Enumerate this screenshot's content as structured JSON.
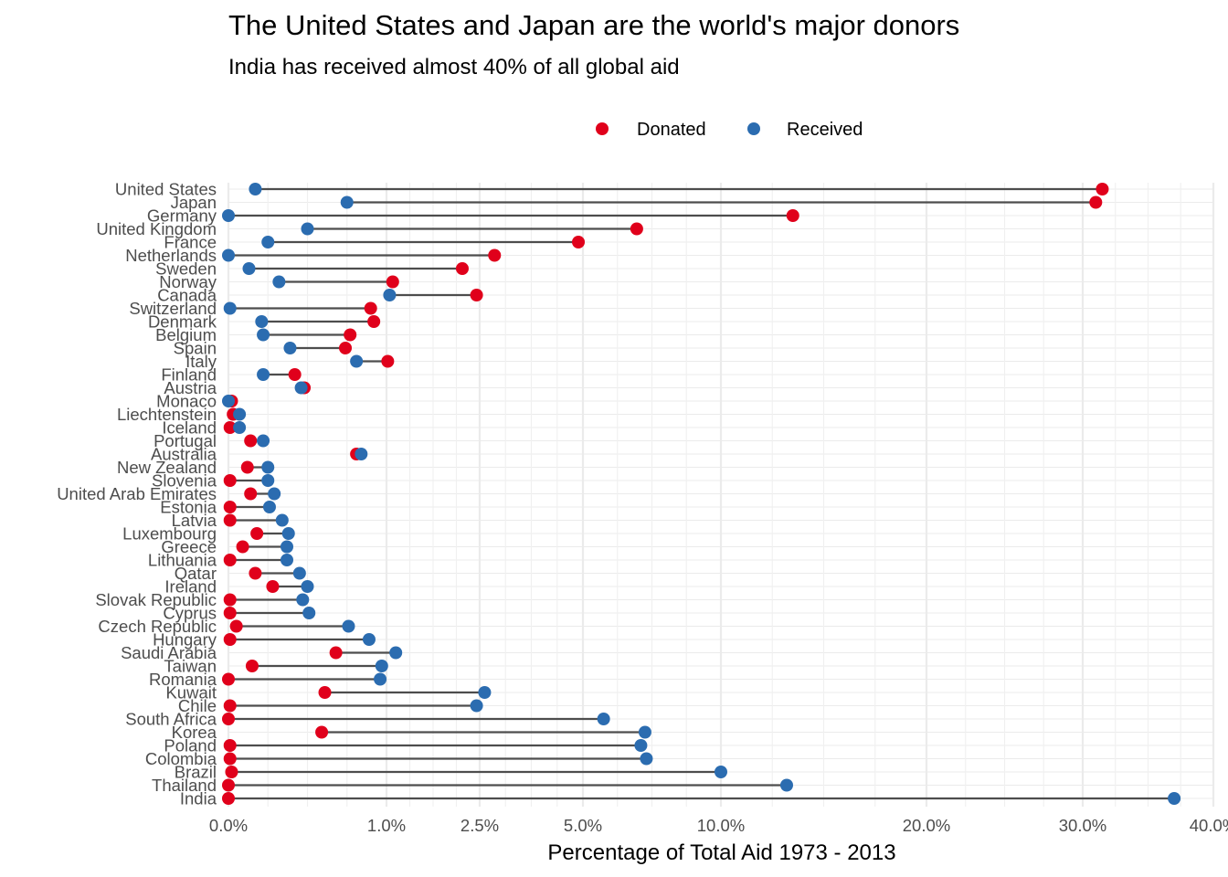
{
  "chart_data": {
    "type": "dumbbell",
    "title": "The United States and Japan are the world's major donors",
    "subtitle": "India has received almost 40% of all global aid",
    "xlabel": "Percentage of Total Aid 1973 - 2013",
    "ylabel": "",
    "x_scale": "piecewise-linear",
    "xlim": [
      0,
      40
    ],
    "x_ticks": [
      {
        "value": 0,
        "label": "0.0%"
      },
      {
        "value": 1,
        "label": "1.0%"
      },
      {
        "value": 2.5,
        "label": "2.5%"
      },
      {
        "value": 5,
        "label": "5.0%"
      },
      {
        "value": 10,
        "label": "10.0%"
      },
      {
        "value": 20,
        "label": "20.0%"
      },
      {
        "value": 30,
        "label": "30.0%"
      },
      {
        "value": 40,
        "label": "40.0%"
      }
    ],
    "grid": true,
    "legend_position": "top",
    "series": [
      {
        "name": "Donated",
        "color": "#e0001b"
      },
      {
        "name": "Received",
        "color": "#2b6cb0"
      }
    ],
    "rows": [
      {
        "country": "United States",
        "donated": 31.5,
        "received": 0.17
      },
      {
        "country": "Japan",
        "donated": 31.0,
        "received": 0.75
      },
      {
        "country": "Germany",
        "donated": 13.5,
        "received": 0.0
      },
      {
        "country": "United Kingdom",
        "donated": 6.95,
        "received": 0.5
      },
      {
        "country": "France",
        "donated": 4.89,
        "received": 0.25
      },
      {
        "country": "Netherlands",
        "donated": 2.86,
        "received": 0.0
      },
      {
        "country": "Sweden",
        "donated": 2.22,
        "received": 0.13
      },
      {
        "country": "Norway",
        "donated": 1.1,
        "received": 0.32
      },
      {
        "country": "Canada",
        "donated": 2.45,
        "received": 1.05
      },
      {
        "country": "Switzerland",
        "donated": 0.9,
        "received": 0.01
      },
      {
        "country": "Denmark",
        "donated": 0.92,
        "received": 0.21
      },
      {
        "country": "Belgium",
        "donated": 0.77,
        "received": 0.22
      },
      {
        "country": "Spain",
        "donated": 0.74,
        "received": 0.39
      },
      {
        "country": "Italy",
        "donated": 1.02,
        "received": 0.81
      },
      {
        "country": "Finland",
        "donated": 0.42,
        "received": 0.22
      },
      {
        "country": "Austria",
        "donated": 0.48,
        "received": 0.46
      },
      {
        "country": "Monaco",
        "donated": 0.02,
        "received": 0.0
      },
      {
        "country": "Liechtenstein",
        "donated": 0.03,
        "received": 0.07
      },
      {
        "country": "Iceland",
        "donated": 0.01,
        "received": 0.07
      },
      {
        "country": "Portugal",
        "donated": 0.14,
        "received": 0.22
      },
      {
        "country": "Australia",
        "donated": 0.81,
        "received": 0.84
      },
      {
        "country": "New Zealand",
        "donated": 0.12,
        "received": 0.25
      },
      {
        "country": "Slovenia",
        "donated": 0.01,
        "received": 0.25
      },
      {
        "country": "United Arab Emirates",
        "donated": 0.14,
        "received": 0.29
      },
      {
        "country": "Estonia",
        "donated": 0.01,
        "received": 0.26
      },
      {
        "country": "Latvia",
        "donated": 0.01,
        "received": 0.34
      },
      {
        "country": "Luxembourg",
        "donated": 0.18,
        "received": 0.38
      },
      {
        "country": "Greece",
        "donated": 0.09,
        "received": 0.37
      },
      {
        "country": "Lithuania",
        "donated": 0.01,
        "received": 0.37
      },
      {
        "country": "Qatar",
        "donated": 0.17,
        "received": 0.45
      },
      {
        "country": "Ireland",
        "donated": 0.28,
        "received": 0.5
      },
      {
        "country": "Slovak Republic",
        "donated": 0.01,
        "received": 0.47
      },
      {
        "country": "Cyprus",
        "donated": 0.01,
        "received": 0.51
      },
      {
        "country": "Czech Republic",
        "donated": 0.05,
        "received": 0.76
      },
      {
        "country": "Hungary",
        "donated": 0.01,
        "received": 0.89
      },
      {
        "country": "Saudi Arabia",
        "donated": 0.68,
        "received": 1.15
      },
      {
        "country": "Taiwan",
        "donated": 0.15,
        "received": 0.97
      },
      {
        "country": "Romania",
        "donated": 0.0,
        "received": 0.96
      },
      {
        "country": "Kuwait",
        "donated": 0.61,
        "received": 2.62
      },
      {
        "country": "Chile",
        "donated": 0.01,
        "received": 2.45
      },
      {
        "country": "South Africa",
        "donated": 0.0,
        "received": 5.75
      },
      {
        "country": "Korea",
        "donated": 0.59,
        "received": 7.25
      },
      {
        "country": "Poland",
        "donated": 0.01,
        "received": 7.1
      },
      {
        "country": "Colombia",
        "donated": 0.01,
        "received": 7.3
      },
      {
        "country": "Brazil",
        "donated": 0.02,
        "received": 10.0
      },
      {
        "country": "Thailand",
        "donated": 0.0,
        "received": 13.2
      },
      {
        "country": "India",
        "donated": 0.0,
        "received": 37.0
      }
    ]
  }
}
